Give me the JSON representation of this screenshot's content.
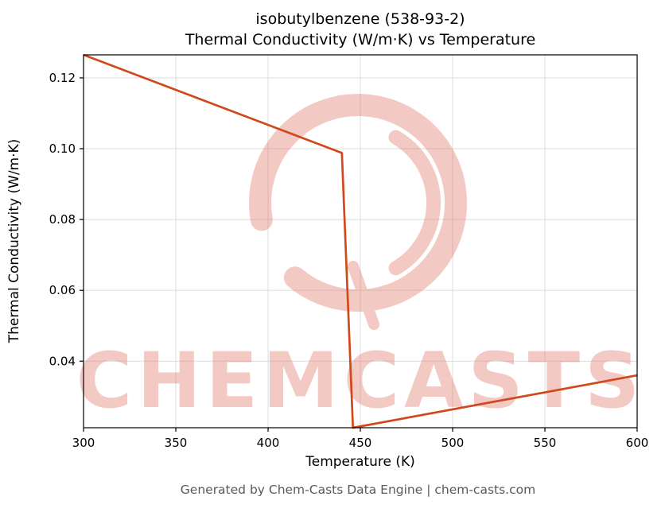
{
  "header": {
    "title_line1": "isobutylbenzene (538-93-2)",
    "title_line2": "Thermal Conductivity (W/m·K) vs Temperature"
  },
  "footer": {
    "text": "Generated by Chem-Casts Data Engine | chem-casts.com"
  },
  "watermark": {
    "text": "CHEMCASTS"
  },
  "colors": {
    "line": "#d0491c",
    "watermark": "#e2796b",
    "grid": "#dcdcdc",
    "spine": "#000000",
    "footer": "#595959"
  },
  "chart_data": {
    "type": "line",
    "title": "isobutylbenzene (538-93-2)\nThermal Conductivity (W/m·K) vs Temperature",
    "xlabel": "Temperature (K)",
    "ylabel": "Thermal Conductivity (W/m·K)",
    "xlim": [
      300,
      600
    ],
    "ylim": [
      0.0212,
      0.1265
    ],
    "x_ticks": [
      300,
      350,
      400,
      450,
      500,
      550,
      600
    ],
    "y_ticks": [
      0.04,
      0.06,
      0.08,
      0.1,
      0.12
    ],
    "grid": true,
    "legend": false,
    "series": [
      {
        "name": "thermal-conductivity",
        "x": [
          300,
          440,
          446,
          600
        ],
        "y": [
          0.1265,
          0.0988,
          0.0212,
          0.036
        ],
        "color": "#d0491c"
      }
    ]
  }
}
